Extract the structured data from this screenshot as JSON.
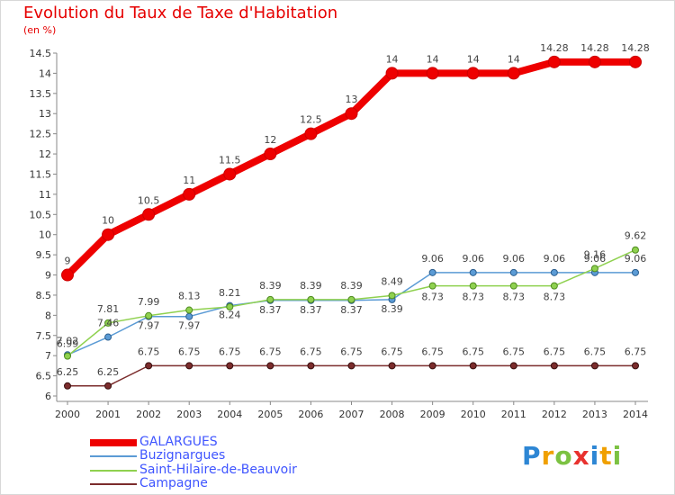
{
  "header": {
    "title": "Evolution du Taux de Taxe d'Habitation",
    "unit": "(en %)"
  },
  "brand": {
    "text": "Proxiti",
    "colors": [
      "#2d86d4",
      "#f0a000",
      "#7cc242",
      "#e8322f",
      "#2d86d4",
      "#f0a000",
      "#7cc242"
    ]
  },
  "chart_data": {
    "type": "line",
    "title": "Evolution du Taux de Taxe d'Habitation",
    "ylabel": "(en %)",
    "xlabel": "",
    "ylim": [
      6,
      14.5
    ],
    "yticks": [
      6,
      6.5,
      7,
      7.5,
      8,
      8.5,
      9,
      9.5,
      10,
      10.5,
      11,
      11.5,
      12,
      12.5,
      13,
      13.5,
      14,
      14.5
    ],
    "x": [
      "2000",
      "2001",
      "2002",
      "2003",
      "2004",
      "2005",
      "2006",
      "2007",
      "2008",
      "2009",
      "2010",
      "2011",
      "2012",
      "2013",
      "2014"
    ],
    "grid": false,
    "legend_position": "bottom-left",
    "series": [
      {
        "name": "GALARGUES",
        "color": "#ee0000",
        "values": [
          9,
          10,
          10.5,
          11,
          11.5,
          12,
          12.5,
          13,
          14,
          14,
          14,
          14,
          14.28,
          14.28,
          14.28
        ],
        "labels": [
          "9",
          "10",
          "10.5",
          "11",
          "11.5",
          "12",
          "12.5",
          "13",
          "14",
          "14",
          "14",
          "14",
          "14.28",
          "14.28",
          "14.28"
        ]
      },
      {
        "name": "Buzignargues",
        "color": "#5b9bd5",
        "values": [
          7.02,
          7.46,
          7.97,
          7.97,
          8.24,
          8.37,
          8.37,
          8.37,
          8.39,
          9.06,
          9.06,
          9.06,
          9.06,
          9.06,
          9.06
        ],
        "labels": [
          "7.02",
          "7.46",
          "7.97",
          "7.97",
          "8.24",
          "8.37",
          "8.37",
          "8.37",
          "8.39",
          "9.06",
          "9.06",
          "9.06",
          "9.06",
          "9.06",
          "9.06"
        ]
      },
      {
        "name": "Saint-Hilaire-de-Beauvoir",
        "color": "#8fd14f",
        "values": [
          6.99,
          7.81,
          7.99,
          8.13,
          8.21,
          8.39,
          8.39,
          8.39,
          8.49,
          8.73,
          8.73,
          8.73,
          8.73,
          9.16,
          9.62
        ],
        "labels": [
          "6.99",
          "7.81",
          "7.99",
          "8.13",
          "8.21",
          "8.39",
          "8.39",
          "8.39",
          "8.49",
          "8.73",
          "8.73",
          "8.73",
          "8.73",
          "9.16",
          "9.62"
        ]
      },
      {
        "name": "Campagne",
        "color": "#7b2c2c",
        "values": [
          6.25,
          6.25,
          6.75,
          6.75,
          6.75,
          6.75,
          6.75,
          6.75,
          6.75,
          6.75,
          6.75,
          6.75,
          6.75,
          6.75,
          6.75
        ],
        "labels": [
          "6.25",
          "6.25",
          "6.75",
          "6.75",
          "6.75",
          "6.75",
          "6.75",
          "6.75",
          "6.75",
          "6.75",
          "6.75",
          "6.75",
          "6.75",
          "6.75",
          "6.75"
        ]
      }
    ]
  }
}
